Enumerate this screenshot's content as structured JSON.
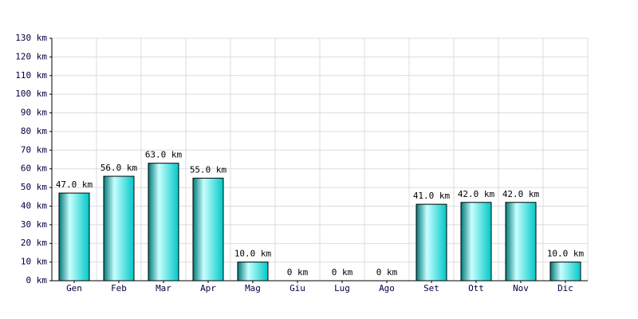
{
  "chart_data": {
    "type": "bar",
    "categories": [
      "Gen",
      "Feb",
      "Mar",
      "Apr",
      "Mag",
      "Giu",
      "Lug",
      "Ago",
      "Set",
      "Ott",
      "Nov",
      "Dic"
    ],
    "values": [
      47,
      56,
      63,
      55,
      10,
      0,
      0,
      0,
      41,
      42,
      42,
      10
    ],
    "value_labels": [
      "47.0 km",
      "56.0 km",
      "63.0 km",
      "55.0 km",
      "10.0 km",
      "0 km",
      "0 km",
      "0 km",
      "41.0 km",
      "42.0 km",
      "42.0 km",
      "10.0 km"
    ],
    "color": "#00c8c8",
    "ylim": [
      0,
      130
    ],
    "yticks": [
      {
        "value": 0,
        "label": "0 km"
      },
      {
        "value": 10,
        "label": "10 km"
      },
      {
        "value": 20,
        "label": "20 km"
      },
      {
        "value": 30,
        "label": "30 km"
      },
      {
        "value": 40,
        "label": "40 km"
      },
      {
        "value": 50,
        "label": "50 km"
      },
      {
        "value": 60,
        "label": "60 km"
      },
      {
        "value": 70,
        "label": "70 km"
      },
      {
        "value": 80,
        "label": "80 km"
      },
      {
        "value": 90,
        "label": "90 km"
      },
      {
        "value": 100,
        "label": "100 km"
      },
      {
        "value": 110,
        "label": "110 km"
      },
      {
        "value": 120,
        "label": "120 km"
      },
      {
        "value": 130,
        "label": "130 km"
      }
    ],
    "grid": true
  }
}
